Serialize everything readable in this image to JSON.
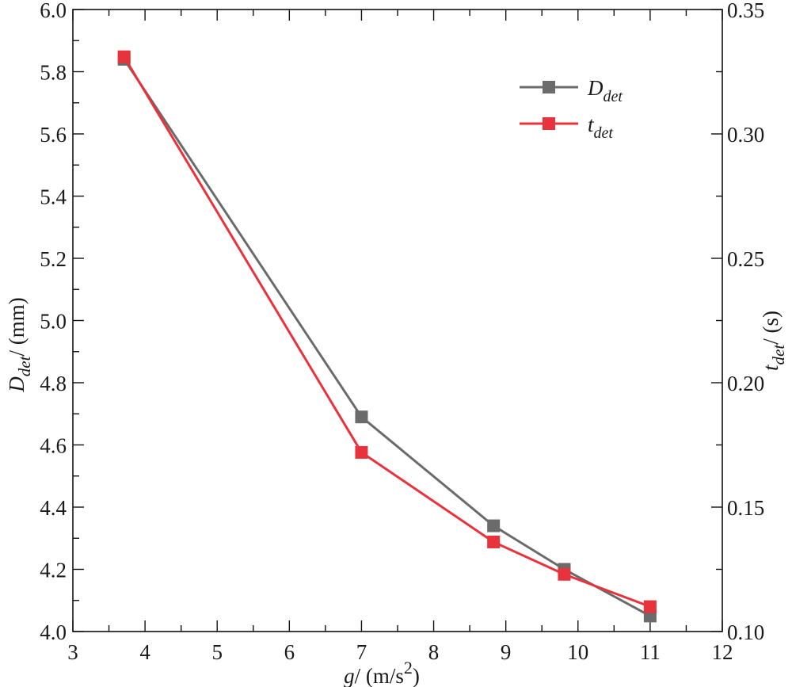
{
  "chart_data": {
    "type": "line",
    "x_axis": {
      "label_var": "g",
      "label_unit": "/ (m/s",
      "label_sup": "2",
      "label_close": ")",
      "range": [
        3,
        12
      ],
      "ticks": [
        "3",
        "4",
        "5",
        "6",
        "7",
        "8",
        "9",
        "10",
        "11",
        "12"
      ]
    },
    "y_left": {
      "label_var": "D",
      "label_sub": "det",
      "label_unit": "/ (mm)",
      "range": [
        4.0,
        6.0
      ],
      "ticks": [
        "4.0",
        "4.2",
        "4.4",
        "4.6",
        "4.8",
        "5.0",
        "5.2",
        "5.4",
        "5.6",
        "5.8",
        "6.0"
      ]
    },
    "y_right": {
      "label_var": "t",
      "label_sub": "det",
      "label_unit": "/ (s)",
      "range": [
        0.1,
        0.35
      ],
      "ticks": [
        "0.10",
        "0.15",
        "0.20",
        "0.25",
        "0.30",
        "0.35"
      ]
    },
    "series": [
      {
        "name_var": "D",
        "name_sub": "det",
        "axis": "left",
        "color": "#6b6b6b",
        "x": [
          3.71,
          7.0,
          8.83,
          9.81,
          11.0
        ],
        "y": [
          5.84,
          4.69,
          4.34,
          4.2,
          4.05
        ]
      },
      {
        "name_var": "t",
        "name_sub": "det",
        "axis": "right",
        "color": "#e8323c",
        "x": [
          3.71,
          7.0,
          8.83,
          9.81,
          11.0
        ],
        "y": [
          0.331,
          0.172,
          0.136,
          0.123,
          0.11
        ]
      }
    ],
    "legend_position": "top-right",
    "grid": false
  }
}
